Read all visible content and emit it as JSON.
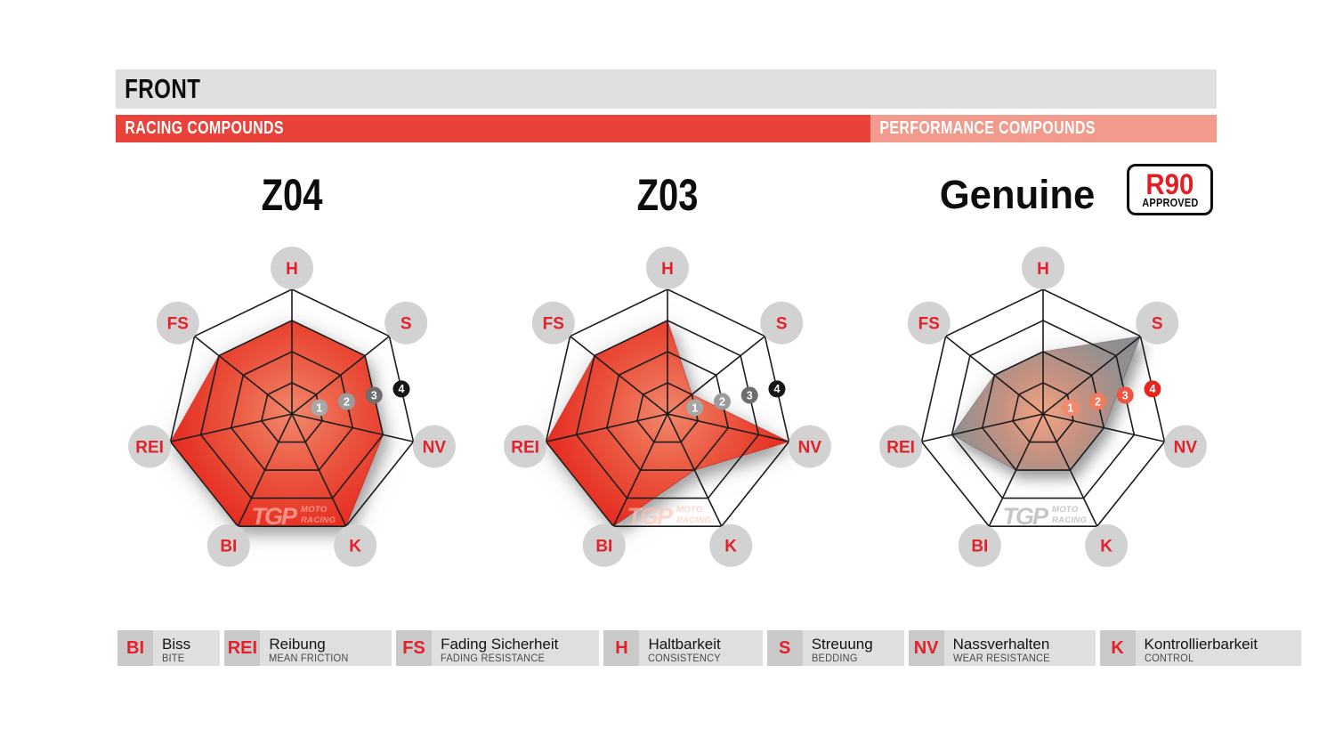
{
  "page": {
    "title": "FRONT"
  },
  "banners": {
    "racing": "RACING COMPOUNDS",
    "performance": "PERFORMANCE COMPOUNDS"
  },
  "charts": [
    {
      "title": "Z04",
      "style": "racing"
    },
    {
      "title": "Z03",
      "style": "racing"
    },
    {
      "title": "Genuine",
      "style": "genuine",
      "badge": {
        "top": "R90",
        "bottom": "APPROVED"
      }
    }
  ],
  "chart_data": {
    "type": "radar",
    "axes": [
      "H",
      "S",
      "NV",
      "K",
      "BI",
      "REI",
      "FS"
    ],
    "scale": [
      0,
      4
    ],
    "grid": "on",
    "series": [
      {
        "name": "Z04",
        "values": [
          3,
          3,
          3,
          4,
          4,
          4,
          3
        ]
      },
      {
        "name": "Z03",
        "values": [
          3,
          1,
          4,
          2,
          4,
          4,
          3
        ]
      },
      {
        "name": "Genuine",
        "values": [
          2,
          4,
          2,
          2,
          2,
          3,
          2
        ]
      }
    ]
  },
  "radar": {
    "ring_step": 35,
    "outer_radius": 140,
    "label_radius": 164,
    "marker_angle": 12.857,
    "markers": [
      "1",
      "2",
      "3",
      "4"
    ],
    "axes": [
      {
        "key": "H",
        "angle": 90
      },
      {
        "key": "S",
        "angle": 38.571
      },
      {
        "key": "NV",
        "angle": -12.857
      },
      {
        "key": "K",
        "angle": -64.286
      },
      {
        "key": "BI",
        "angle": -115.714
      },
      {
        "key": "REI",
        "angle": -167.143
      },
      {
        "key": "FS",
        "angle": 141.429
      }
    ]
  },
  "watermark": {
    "logo": "TGP",
    "line1": "MOTO",
    "line2": "RACING"
  },
  "legend": [
    {
      "abbr": "BI",
      "de": "Biss",
      "en": "BITE"
    },
    {
      "abbr": "REI",
      "de": "Reibung",
      "en": "MEAN FRICTION"
    },
    {
      "abbr": "FS",
      "de": "Fading Sicherheit",
      "en": "FADING RESISTANCE"
    },
    {
      "abbr": "H",
      "de": "Haltbarkeit",
      "en": "CONSISTENCY"
    },
    {
      "abbr": "S",
      "de": "Streuung",
      "en": "BEDDING"
    },
    {
      "abbr": "NV",
      "de": "Nassverhalten",
      "en": "WEAR RESISTANCE"
    },
    {
      "abbr": "K",
      "de": "Kontrollierbarkeit",
      "en": "CONTROL"
    }
  ],
  "colors": {
    "accent_red": "#e8423a",
    "salmon": "#f29b8d",
    "bar_gray": "#dfdfdf",
    "legend_square_gray": "#c9c9c9",
    "label_circle_gray": "#d2d2d2",
    "label_text_red": "#e3212b",
    "badge_red": "#e31e25",
    "grid": "#1c1c1c",
    "racing_fill": [
      [
        "0%",
        "#f0876b"
      ],
      [
        "50%",
        "#eb5740"
      ],
      [
        "100%",
        "#e62d21"
      ]
    ],
    "genuine_fill": [
      [
        "0%",
        "#f2a483"
      ],
      [
        "35%",
        "#c49181"
      ],
      [
        "70%",
        "#97908f"
      ],
      [
        "100%",
        "#8a8b90"
      ]
    ],
    "racing_markers": [
      "#a7a7a7",
      "#9b9b9b",
      "#6d6d6d",
      "#161616"
    ],
    "genuine_markers": [
      "#f5886c",
      "#f37a5e",
      "#ee5440",
      "#e7251d"
    ]
  }
}
